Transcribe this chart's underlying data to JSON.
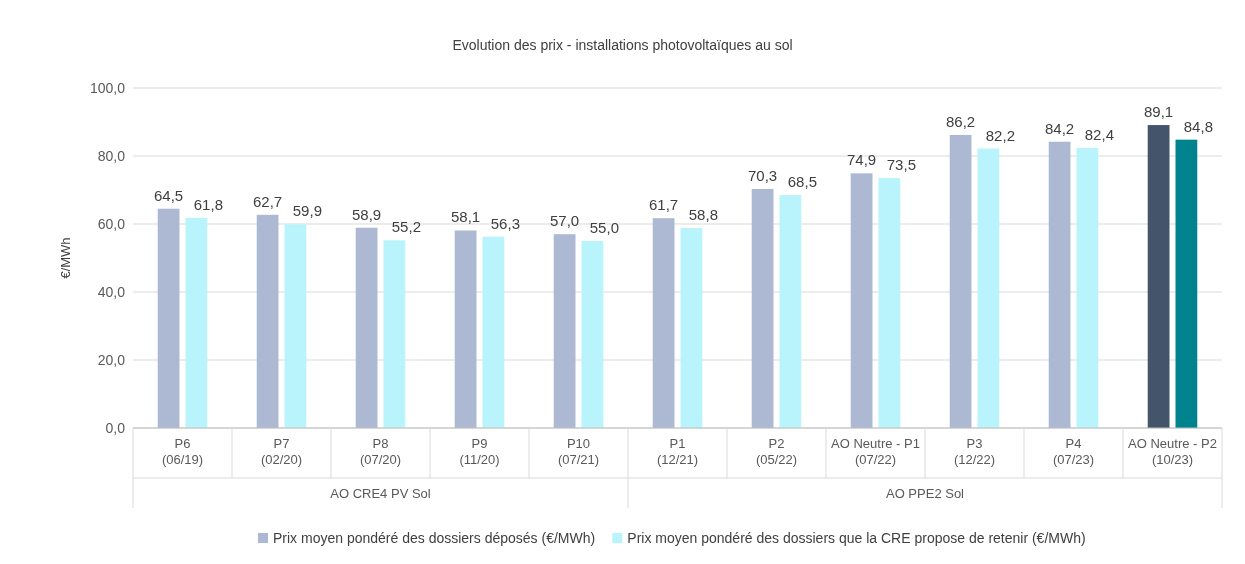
{
  "chart_data": {
    "type": "bar",
    "title": "Evolution des prix - installations photovoltaïques au sol",
    "ylabel": "€/MWh",
    "categories": [
      "P6\n(06/19)",
      "P7\n(02/20)",
      "P8\n(07/20)",
      "P9\n(11/20)",
      "P10\n(07/21)",
      "P1\n(12/21)",
      "P2\n(05/22)",
      "AO Neutre - P1\n(07/22)",
      "P3\n(12/22)",
      "P4\n(07/23)",
      "AO Neutre - P2\n(10/23)"
    ],
    "series": [
      {
        "name": "Prix moyen pondéré des dossiers déposés (€/MWh)",
        "color": "#adb9d3",
        "colors": [
          "#adb9d3",
          "#adb9d3",
          "#adb9d3",
          "#adb9d3",
          "#adb9d3",
          "#adb9d3",
          "#adb9d3",
          "#adb9d3",
          "#adb9d3",
          "#adb9d3",
          "#44546a"
        ],
        "values": [
          64.5,
          62.7,
          58.9,
          58.1,
          57.0,
          61.7,
          70.3,
          74.9,
          86.2,
          84.2,
          89.1
        ],
        "value_labels": [
          "64,5",
          "62,7",
          "58,9",
          "58,1",
          "57,0",
          "61,7",
          "70,3",
          "74,9",
          "86,2",
          "84,2",
          "89,1"
        ]
      },
      {
        "name": "Prix moyen pondéré des dossiers que la CRE propose de retenir (€/MWh)",
        "color": "#b9f3fb",
        "colors": [
          "#b9f3fb",
          "#b9f3fb",
          "#b9f3fb",
          "#b9f3fb",
          "#b9f3fb",
          "#b9f3fb",
          "#b9f3fb",
          "#b9f3fb",
          "#b9f3fb",
          "#b9f3fb",
          "#00838f"
        ],
        "values": [
          61.8,
          59.9,
          55.2,
          56.3,
          55.0,
          58.8,
          68.5,
          73.5,
          82.2,
          82.4,
          84.8
        ],
        "value_labels": [
          "61,8",
          "59,9",
          "55,2",
          "56,3",
          "55,0",
          "58,8",
          "68,5",
          "73,5",
          "82,2",
          "82,4",
          "84,8"
        ]
      }
    ],
    "annotations": [
      "AO CRE4 PV Sol",
      "AO PPE2 Sol"
    ],
    "ylim": [
      0,
      100
    ],
    "yticks": [
      {
        "value": 0,
        "label": "0,0"
      },
      {
        "value": 20,
        "label": "20,0"
      },
      {
        "value": 40,
        "label": "40,0"
      },
      {
        "value": 60,
        "label": "60,0"
      },
      {
        "value": 80,
        "label": "80,0"
      },
      {
        "value": 100,
        "label": "100,0"
      }
    ],
    "grid": "y",
    "legend": "bottom"
  }
}
